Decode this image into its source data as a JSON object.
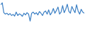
{
  "chart_data": {
    "type": "line",
    "color": "#3b7fc4",
    "categories": [
      null,
      null,
      null,
      null,
      null,
      null,
      null,
      null,
      null,
      null,
      null,
      null,
      null,
      null,
      null,
      null,
      null,
      null,
      null,
      null,
      null,
      null,
      null,
      null,
      null,
      null,
      null,
      null,
      null,
      null,
      null,
      null,
      null,
      null,
      null,
      null,
      null,
      null,
      null,
      null,
      null,
      null,
      null,
      null,
      null,
      null,
      null,
      null,
      null,
      null,
      null,
      null,
      null,
      null,
      null
    ],
    "values": [
      88,
      95,
      60,
      55,
      58,
      52,
      57,
      50,
      54,
      48,
      62,
      50,
      56,
      53,
      47,
      58,
      52,
      60,
      55,
      30,
      58,
      62,
      55,
      60,
      52,
      64,
      58,
      50,
      62,
      66,
      55,
      70,
      52,
      60,
      75,
      58,
      68,
      80,
      55,
      62,
      85,
      60,
      72,
      90,
      65,
      58,
      82,
      70,
      60,
      88,
      66,
      55,
      72,
      62,
      58
    ],
    "ylim": [
      0,
      100
    ],
    "grid": false,
    "tick_labels": false
  }
}
